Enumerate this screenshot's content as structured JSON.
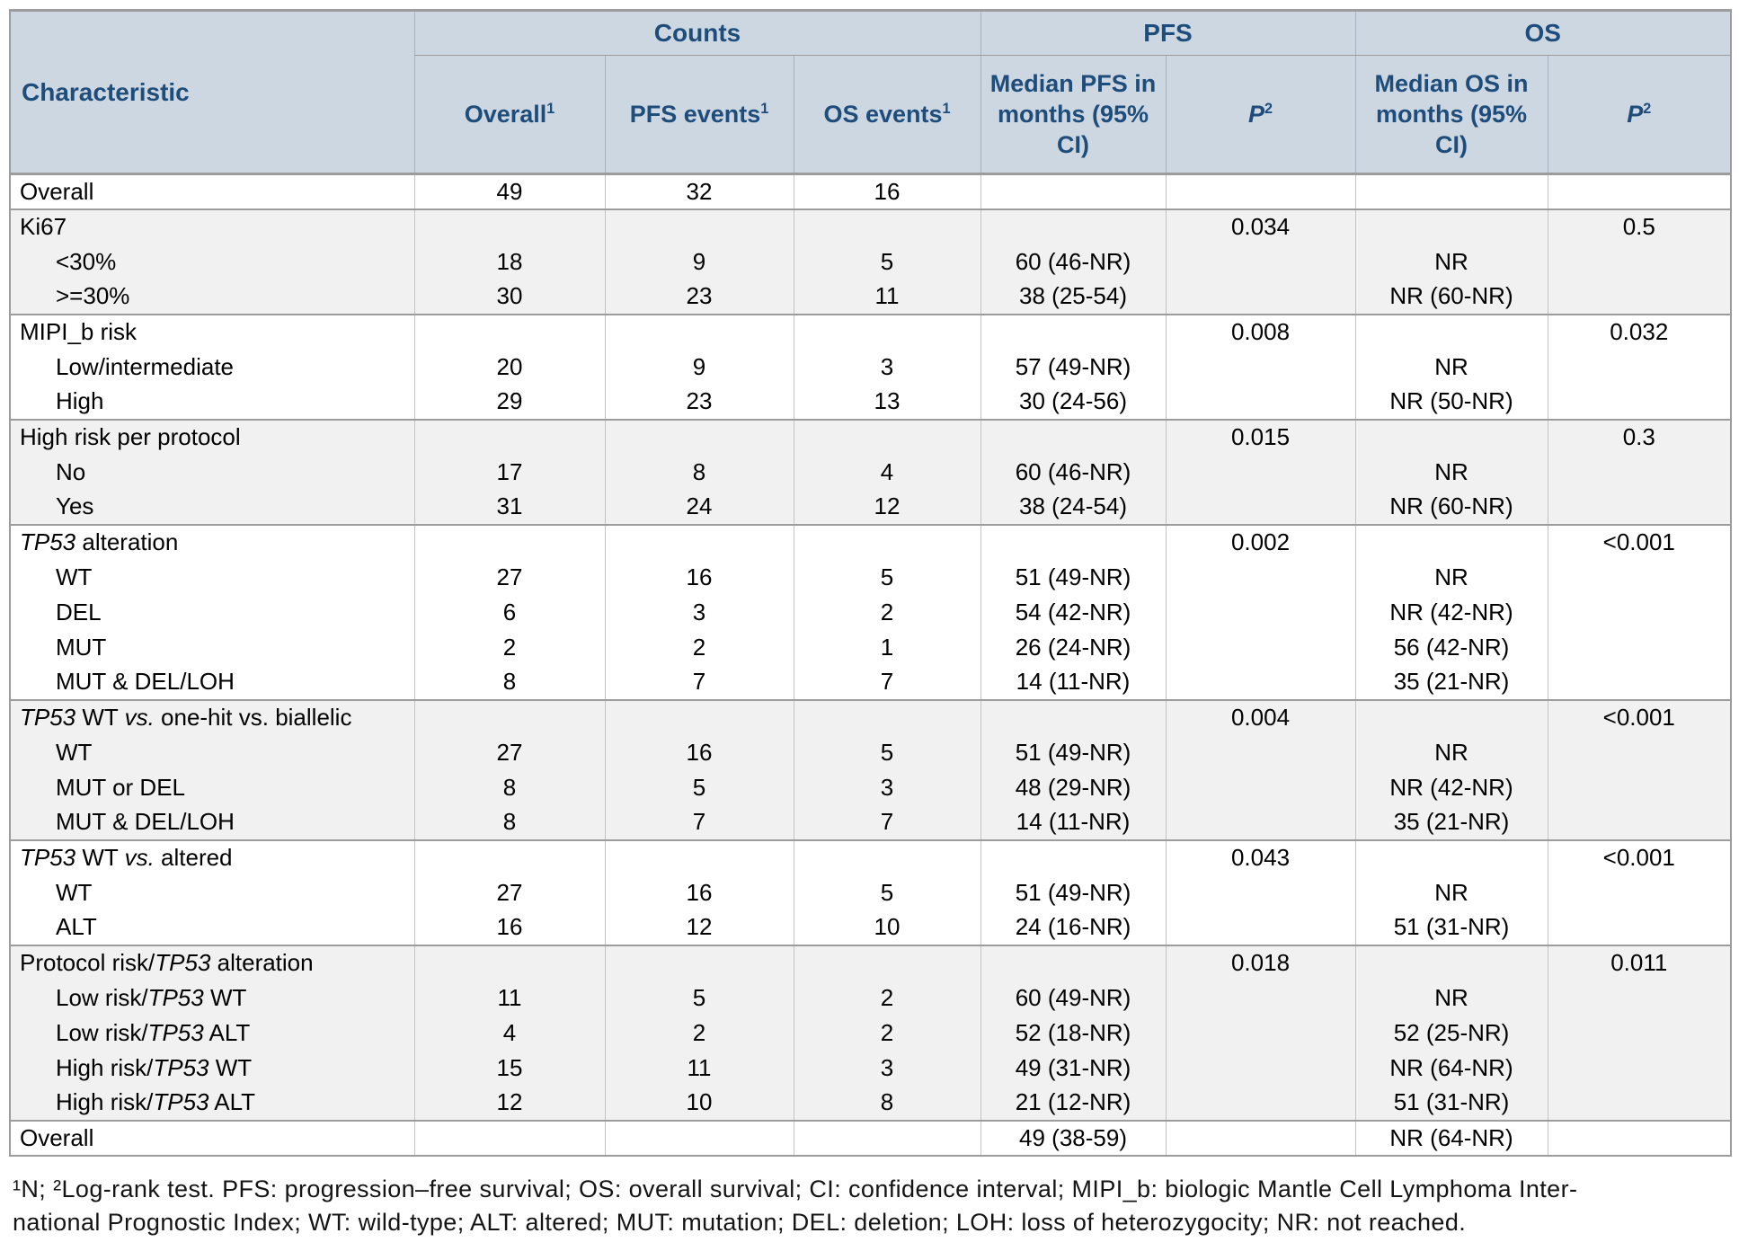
{
  "colors": {
    "header_bg": "#cdd7e1",
    "header_text": "#1e4d7b",
    "shaded_row": "#f1f1f1",
    "border_heavy": "#9c9c9c",
    "border_light": "#c3c3c3"
  },
  "table": {
    "header": {
      "characteristic": "Characteristic",
      "bands": [
        {
          "label": "Counts",
          "span": 3
        },
        {
          "label": "PFS",
          "span": 2
        },
        {
          "label": "OS",
          "span": 2
        }
      ],
      "columns": [
        {
          "name": "col-header-overall",
          "text": "Overall",
          "sup": "1"
        },
        {
          "name": "col-header-pfs-events",
          "text": "PFS events",
          "sup": "1"
        },
        {
          "name": "col-header-os-events",
          "text": "OS events",
          "sup": "1"
        },
        {
          "name": "col-header-median-pfs",
          "text": "Median PFS in months (95% CI)"
        },
        {
          "name": "col-header-p-pfs",
          "text": "P",
          "sup": "2",
          "italic": true
        },
        {
          "name": "col-header-median-os",
          "text": "Median OS in months (95% CI)"
        },
        {
          "name": "col-header-p-os",
          "text": "P",
          "sup": "2",
          "italic": true
        }
      ]
    },
    "groups": [
      {
        "rows": [
          {
            "label": [
              {
                "t": "Overall"
              }
            ],
            "indent": false,
            "cells": [
              "49",
              "32",
              "16",
              "",
              "",
              "",
              ""
            ]
          }
        ]
      },
      {
        "rows": [
          {
            "label": [
              {
                "t": "Ki67"
              }
            ],
            "indent": false,
            "cells": [
              "",
              "",
              "",
              "",
              "0.034",
              "",
              "0.5"
            ]
          },
          {
            "label": [
              {
                "t": "<30%"
              }
            ],
            "indent": true,
            "cells": [
              "18",
              "9",
              "5",
              "60 (46-NR)",
              "",
              "NR",
              ""
            ]
          },
          {
            "label": [
              {
                "t": ">=30%"
              }
            ],
            "indent": true,
            "cells": [
              "30",
              "23",
              "11",
              "38 (25-54)",
              "",
              "NR (60-NR)",
              ""
            ]
          }
        ]
      },
      {
        "rows": [
          {
            "label": [
              {
                "t": "MIPI_b risk"
              }
            ],
            "indent": false,
            "cells": [
              "",
              "",
              "",
              "",
              "0.008",
              "",
              "0.032"
            ]
          },
          {
            "label": [
              {
                "t": "Low/intermediate"
              }
            ],
            "indent": true,
            "cells": [
              "20",
              "9",
              "3",
              "57 (49-NR)",
              "",
              "NR",
              ""
            ]
          },
          {
            "label": [
              {
                "t": "High"
              }
            ],
            "indent": true,
            "cells": [
              "29",
              "23",
              "13",
              "30 (24-56)",
              "",
              "NR (50-NR)",
              ""
            ]
          }
        ]
      },
      {
        "rows": [
          {
            "label": [
              {
                "t": "High risk per protocol"
              }
            ],
            "indent": false,
            "cells": [
              "",
              "",
              "",
              "",
              "0.015",
              "",
              "0.3"
            ]
          },
          {
            "label": [
              {
                "t": "No"
              }
            ],
            "indent": true,
            "cells": [
              "17",
              "8",
              "4",
              "60 (46-NR)",
              "",
              "NR",
              ""
            ]
          },
          {
            "label": [
              {
                "t": "Yes"
              }
            ],
            "indent": true,
            "cells": [
              "31",
              "24",
              "12",
              "38 (24-54)",
              "",
              "NR (60-NR)",
              ""
            ]
          }
        ]
      },
      {
        "rows": [
          {
            "label": [
              {
                "t": "TP53",
                "i": true
              },
              {
                "t": " alteration"
              }
            ],
            "indent": false,
            "cells": [
              "",
              "",
              "",
              "",
              "0.002",
              "",
              "<0.001"
            ]
          },
          {
            "label": [
              {
                "t": "WT"
              }
            ],
            "indent": true,
            "cells": [
              "27",
              "16",
              "5",
              "51 (49-NR)",
              "",
              "NR",
              ""
            ]
          },
          {
            "label": [
              {
                "t": "DEL"
              }
            ],
            "indent": true,
            "cells": [
              "6",
              "3",
              "2",
              "54 (42-NR)",
              "",
              "NR (42-NR)",
              ""
            ]
          },
          {
            "label": [
              {
                "t": "MUT"
              }
            ],
            "indent": true,
            "cells": [
              "2",
              "2",
              "1",
              "26 (24-NR)",
              "",
              "56 (42-NR)",
              ""
            ]
          },
          {
            "label": [
              {
                "t": "MUT & DEL/LOH"
              }
            ],
            "indent": true,
            "cells": [
              "8",
              "7",
              "7",
              "14 (11-NR)",
              "",
              "35 (21-NR)",
              ""
            ]
          }
        ]
      },
      {
        "rows": [
          {
            "label": [
              {
                "t": "TP53",
                "i": true
              },
              {
                "t": " WT "
              },
              {
                "t": "vs.",
                "i": true
              },
              {
                "t": " one-hit vs. biallelic"
              }
            ],
            "indent": false,
            "cells": [
              "",
              "",
              "",
              "",
              "0.004",
              "",
              "<0.001"
            ]
          },
          {
            "label": [
              {
                "t": "WT"
              }
            ],
            "indent": true,
            "cells": [
              "27",
              "16",
              "5",
              "51 (49-NR)",
              "",
              "NR",
              ""
            ]
          },
          {
            "label": [
              {
                "t": "MUT or DEL"
              }
            ],
            "indent": true,
            "cells": [
              "8",
              "5",
              "3",
              "48 (29-NR)",
              "",
              "NR (42-NR)",
              ""
            ]
          },
          {
            "label": [
              {
                "t": "MUT & DEL/LOH"
              }
            ],
            "indent": true,
            "cells": [
              "8",
              "7",
              "7",
              "14 (11-NR)",
              "",
              "35 (21-NR)",
              ""
            ]
          }
        ]
      },
      {
        "rows": [
          {
            "label": [
              {
                "t": "TP53",
                "i": true
              },
              {
                "t": " WT "
              },
              {
                "t": "vs.",
                "i": true
              },
              {
                "t": " altered"
              }
            ],
            "indent": false,
            "cells": [
              "",
              "",
              "",
              "",
              "0.043",
              "",
              "<0.001"
            ]
          },
          {
            "label": [
              {
                "t": "WT"
              }
            ],
            "indent": true,
            "cells": [
              "27",
              "16",
              "5",
              "51 (49-NR)",
              "",
              "NR",
              ""
            ]
          },
          {
            "label": [
              {
                "t": "ALT"
              }
            ],
            "indent": true,
            "cells": [
              "16",
              "12",
              "10",
              "24 (16-NR)",
              "",
              "51 (31-NR)",
              ""
            ]
          }
        ]
      },
      {
        "rows": [
          {
            "label": [
              {
                "t": "Protocol risk/"
              },
              {
                "t": "TP53",
                "i": true
              },
              {
                "t": " alteration"
              }
            ],
            "indent": false,
            "cells": [
              "",
              "",
              "",
              "",
              "0.018",
              "",
              "0.011"
            ]
          },
          {
            "label": [
              {
                "t": "Low risk/"
              },
              {
                "t": "TP53",
                "i": true
              },
              {
                "t": " WT"
              }
            ],
            "indent": true,
            "cells": [
              "11",
              "5",
              "2",
              "60 (49-NR)",
              "",
              "NR",
              ""
            ]
          },
          {
            "label": [
              {
                "t": "Low risk/"
              },
              {
                "t": "TP53",
                "i": true
              },
              {
                "t": " ALT"
              }
            ],
            "indent": true,
            "cells": [
              "4",
              "2",
              "2",
              "52 (18-NR)",
              "",
              "52 (25-NR)",
              ""
            ]
          },
          {
            "label": [
              {
                "t": "High risk/"
              },
              {
                "t": "TP53",
                "i": true
              },
              {
                "t": " WT"
              }
            ],
            "indent": true,
            "cells": [
              "15",
              "11",
              "3",
              "49 (31-NR)",
              "",
              "NR (64-NR)",
              ""
            ]
          },
          {
            "label": [
              {
                "t": "High risk/"
              },
              {
                "t": "TP53",
                "i": true
              },
              {
                "t": " ALT"
              }
            ],
            "indent": true,
            "cells": [
              "12",
              "10",
              "8",
              "21 (12-NR)",
              "",
              "51 (31-NR)",
              ""
            ]
          }
        ]
      },
      {
        "rows": [
          {
            "label": [
              {
                "t": "Overall"
              }
            ],
            "indent": false,
            "cells": [
              "",
              "",
              "",
              "49 (38-59)",
              "",
              "NR (64-NR)",
              ""
            ]
          }
        ]
      }
    ]
  },
  "footnote": {
    "line1": "¹N; ²Log-rank test. PFS: progression–free survival; OS: overall survival; CI: confidence interval; MIPI_b: biologic Mantle Cell Lymphoma Inter-",
    "line2": "national Prognostic Index; WT: wild-type; ALT: altered; MUT: mutation; DEL: deletion; LOH: loss of heterozygocity; NR: not reached."
  }
}
